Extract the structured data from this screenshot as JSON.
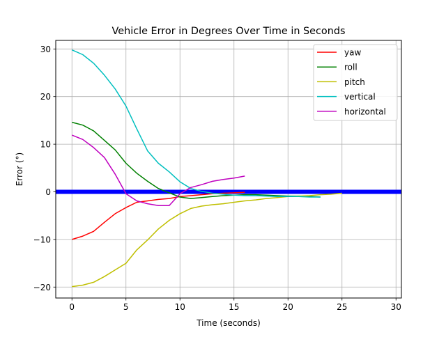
{
  "chart_data": {
    "type": "line",
    "title": "Vehicle Error in Degrees Over Time in Seconds",
    "xlabel": "Time (seconds)",
    "ylabel": "Error (°)",
    "xlim": [
      -1.5,
      30.5
    ],
    "ylim": [
      -22.3,
      31.8
    ],
    "xticks": [
      0,
      5,
      10,
      15,
      20,
      25,
      30
    ],
    "yticks": [
      -20,
      -10,
      0,
      10,
      20,
      30
    ],
    "xtick_labels": [
      "0",
      "5",
      "10",
      "15",
      "20",
      "25",
      "30"
    ],
    "ytick_labels": [
      "−20",
      "−10",
      "0",
      "10",
      "20",
      "30"
    ],
    "grid": true,
    "legend_position": "top-right",
    "zero_line": {
      "y": 0,
      "color": "#0000ff"
    },
    "series": [
      {
        "name": "yaw",
        "color": "#ff0000",
        "x": [
          0,
          1,
          2,
          3,
          4,
          5,
          6,
          7,
          8,
          9,
          10,
          11,
          12,
          13,
          14,
          15,
          16
        ],
        "y": [
          -10,
          -9.3,
          -8.3,
          -6.4,
          -4.6,
          -3.3,
          -2.2,
          -1.9,
          -1.6,
          -1.4,
          -1.0,
          -0.8,
          -0.6,
          -0.4,
          -0.3,
          -0.2,
          -0.1
        ]
      },
      {
        "name": "roll",
        "color": "#008000",
        "x": [
          0,
          1,
          2,
          3,
          4,
          5,
          6,
          7,
          8,
          9,
          10,
          11,
          12,
          13,
          14,
          15,
          16,
          17,
          18,
          19,
          20,
          21,
          22,
          23
        ],
        "y": [
          14.6,
          14.0,
          12.8,
          10.8,
          8.8,
          6.0,
          3.9,
          2.2,
          0.7,
          -0.2,
          -1.1,
          -1.4,
          -1.2,
          -1.0,
          -0.8,
          -0.7,
          -0.6,
          -0.6,
          -0.7,
          -0.8,
          -0.9,
          -0.9,
          -1.0,
          -1.1
        ]
      },
      {
        "name": "pitch",
        "color": "#bfbf00",
        "x": [
          0,
          1,
          2,
          3,
          4,
          5,
          6,
          7,
          8,
          9,
          10,
          11,
          12,
          13,
          14,
          15,
          16,
          17,
          18,
          19,
          20,
          21,
          22,
          23,
          24,
          25
        ],
        "y": [
          -19.9,
          -19.6,
          -19.0,
          -17.8,
          -16.4,
          -15.0,
          -12.2,
          -10.1,
          -7.8,
          -6.0,
          -4.6,
          -3.5,
          -3.0,
          -2.7,
          -2.5,
          -2.2,
          -1.9,
          -1.7,
          -1.4,
          -1.2,
          -1.0,
          -0.9,
          -0.8,
          -0.6,
          -0.5,
          -0.3
        ]
      },
      {
        "name": "vertical",
        "color": "#00bfbf",
        "x": [
          0,
          1,
          2,
          3,
          4,
          5,
          6,
          7,
          8,
          9,
          10,
          11,
          12,
          13,
          14,
          15,
          16,
          17,
          18,
          19,
          20,
          21,
          22,
          23
        ],
        "y": [
          29.8,
          28.8,
          27.0,
          24.5,
          21.6,
          18.0,
          13.2,
          8.6,
          6.0,
          4.2,
          2.1,
          0.7,
          0.1,
          -0.3,
          -0.5,
          -0.7,
          -0.8,
          -0.8,
          -0.9,
          -1.0,
          -1.0,
          -1.0,
          -1.1,
          -1.1
        ]
      },
      {
        "name": "horizontal",
        "color": "#bf00bf",
        "x": [
          0,
          1,
          2,
          3,
          4,
          5,
          6,
          7,
          8,
          9,
          10,
          11,
          12,
          13,
          14,
          15,
          16
        ],
        "y": [
          11.9,
          11.0,
          9.3,
          7.2,
          3.7,
          -0.4,
          -1.9,
          -2.5,
          -2.9,
          -2.9,
          -0.4,
          0.9,
          1.5,
          2.2,
          2.6,
          2.9,
          3.3
        ]
      }
    ]
  }
}
